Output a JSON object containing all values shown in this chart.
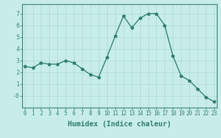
{
  "x": [
    0,
    1,
    2,
    3,
    4,
    5,
    6,
    7,
    8,
    9,
    10,
    11,
    12,
    13,
    14,
    15,
    16,
    17,
    18,
    19,
    20,
    21,
    22,
    23
  ],
  "y": [
    2.5,
    2.4,
    2.8,
    2.7,
    2.7,
    3.0,
    2.8,
    2.3,
    1.8,
    1.6,
    3.3,
    5.1,
    6.8,
    5.8,
    6.6,
    7.0,
    7.0,
    6.0,
    3.4,
    1.7,
    1.3,
    0.6,
    -0.1,
    -0.5
  ],
  "line_color": "#2e7d6e",
  "bg_color": "#c8ede8",
  "grid_color": "#a8d8d0",
  "xlabel": "Humidex (Indice chaleur)",
  "ylim": [
    -1.0,
    7.8
  ],
  "xlim": [
    -0.3,
    23.3
  ],
  "yticks": [
    0,
    1,
    2,
    3,
    4,
    5,
    6,
    7
  ],
  "ytick_labels": [
    "-0",
    "1",
    "2",
    "3",
    "4",
    "5",
    "6",
    "7"
  ],
  "xticks": [
    0,
    1,
    2,
    3,
    4,
    5,
    6,
    7,
    8,
    9,
    10,
    11,
    12,
    13,
    14,
    15,
    16,
    17,
    18,
    19,
    20,
    21,
    22,
    23
  ],
  "axis_color": "#2e7d6e",
  "tick_color": "#2e7d6e",
  "marker": "*",
  "markersize": 3.5,
  "linewidth": 1.0,
  "xlabel_fontsize": 7.5,
  "tick_fontsize": 5.5
}
